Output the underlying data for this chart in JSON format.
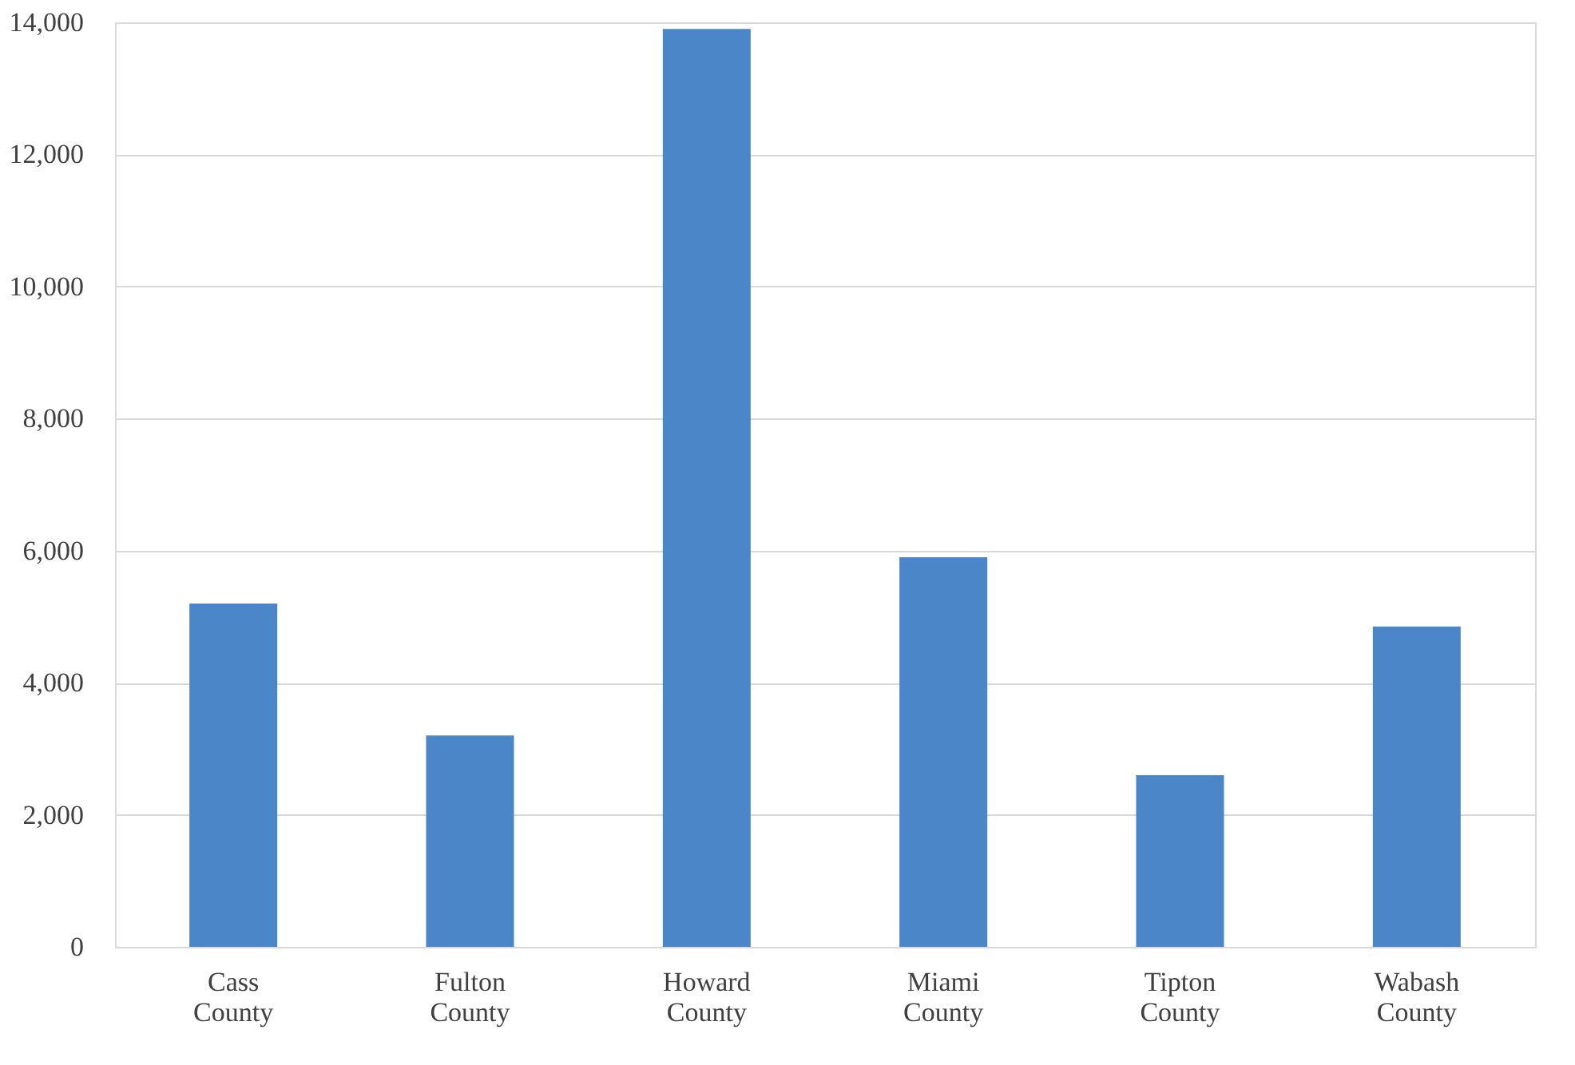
{
  "chart_data": {
    "type": "bar",
    "categories": [
      "Cass County",
      "Fulton County",
      "Howard County",
      "Miami County",
      "Tipton County",
      "Wabash County"
    ],
    "values": [
      5200,
      3200,
      13900,
      5900,
      2600,
      4850
    ],
    "color": "#4a86c8",
    "ylim": [
      0,
      14000
    ],
    "yticks": [
      0,
      {
        "value": 2000,
        "label": "2,000"
      },
      {
        "value": 4000,
        "label": "4,000"
      },
      {
        "value": 6000,
        "label": "6,000"
      },
      {
        "value": 8000,
        "label": "8,000"
      },
      {
        "value": 10000,
        "label": "10,000"
      },
      {
        "value": 12000,
        "label": "12,000"
      },
      {
        "value": 14000,
        "label": "14,000"
      }
    ],
    "grid": "y"
  }
}
